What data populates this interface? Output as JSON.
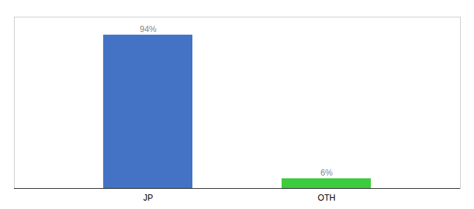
{
  "chart_data": {
    "type": "bar",
    "categories": [
      "JP",
      "OTH"
    ],
    "values": [
      94,
      6
    ],
    "value_labels": [
      "94%",
      "6%"
    ],
    "colors": [
      "#4472c4",
      "#3dcc3d"
    ],
    "ylim": [
      0,
      105
    ],
    "data_labels": true,
    "tick_labels": "x",
    "grid": false
  }
}
